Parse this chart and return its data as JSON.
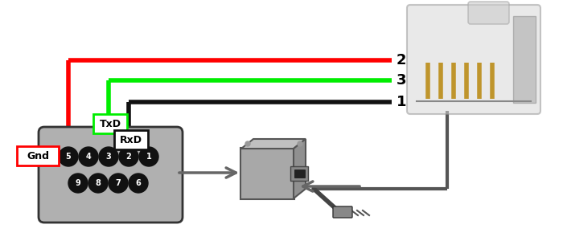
{
  "bg_color": "#ffffff",
  "wire_red_color": "#ff0000",
  "wire_green_color": "#00ee00",
  "wire_black_color": "#111111",
  "db9_color": "#b0b0b0",
  "pin_color": "#111111",
  "pin_text_color": "#ffffff",
  "label_gnd": "Gnd",
  "label_txd": "TxD",
  "label_rxd": "RxD",
  "rj11_labels": [
    "2",
    "3",
    "1"
  ],
  "db9_top_pins": [
    "5",
    "4",
    "3",
    "2",
    "1"
  ],
  "db9_bot_pins": [
    "9",
    "8",
    "7",
    "6"
  ],
  "wire_lw": 4,
  "figsize": [
    7.0,
    3.0
  ],
  "dpi": 100,
  "arrow_color": "#666666",
  "connector_line_color": "#555555"
}
